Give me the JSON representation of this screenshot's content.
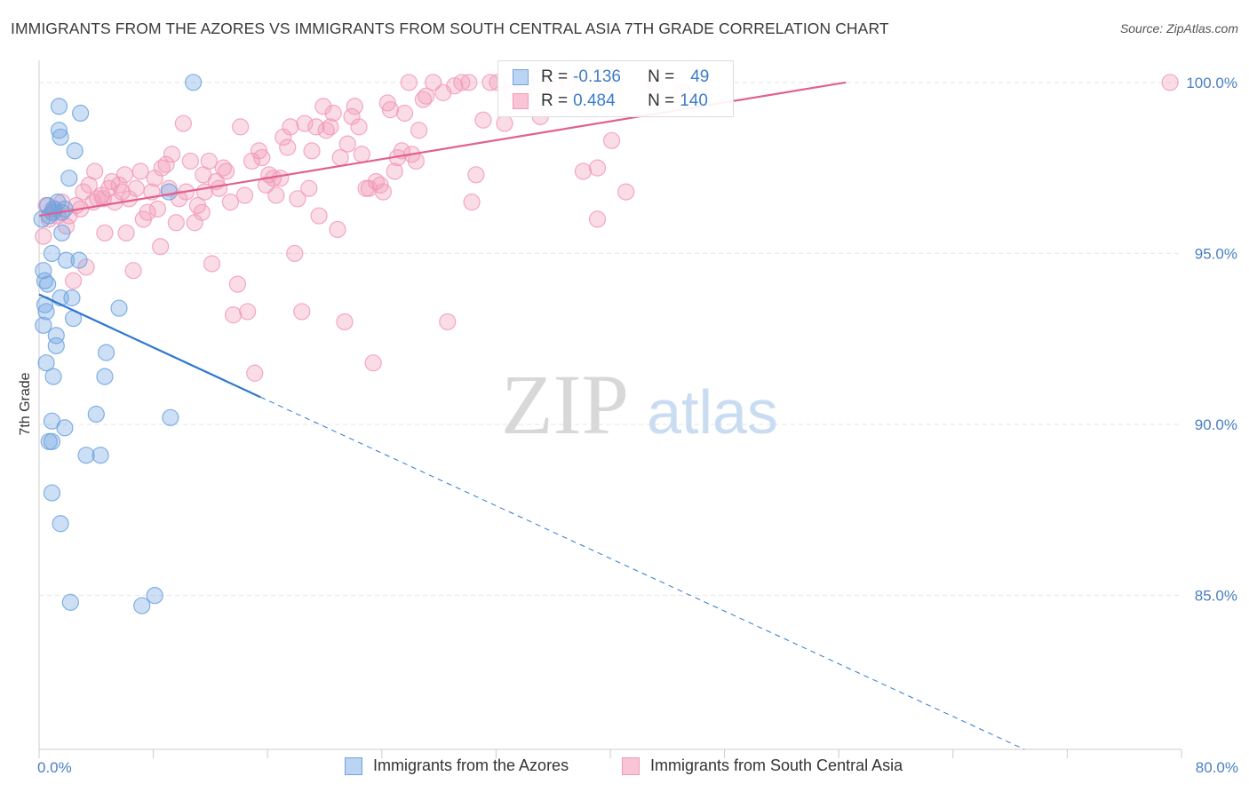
{
  "chart_data": {
    "type": "scatter",
    "title": "IMMIGRANTS FROM THE AZORES VS IMMIGRANTS FROM SOUTH CENTRAL ASIA 7TH GRADE CORRELATION CHART",
    "source": "Source: ZipAtlas.com",
    "watermark": {
      "zip": "ZIP",
      "atlas": "atlas"
    },
    "ylabel": "7th Grade",
    "xlim": [
      0,
      80
    ],
    "ylim": [
      80.5,
      100.8
    ],
    "x_tick_labels": {
      "left": "0.0%",
      "right": "80.0%"
    },
    "y_ticks": [
      {
        "value": 100,
        "label": "100.0%"
      },
      {
        "value": 95,
        "label": "95.0%"
      },
      {
        "value": 90,
        "label": "90.0%"
      },
      {
        "value": 85,
        "label": "85.0%"
      }
    ],
    "legend": {
      "rows": [
        {
          "r_label": "R =",
          "r_value": "-0.136",
          "n_label": "N =",
          "n_value": "49"
        },
        {
          "r_label": "R =",
          "r_value": "0.484",
          "n_label": "N =",
          "n_value": "140"
        }
      ]
    },
    "series": [
      {
        "name": "Immigrants from the Azores",
        "color": "#6fa3e0",
        "line_color": "#2f78cf",
        "trend": {
          "solid": [
            [
              0,
              93.8
            ],
            [
              15.5,
              90.8
            ]
          ],
          "dashed": [
            [
              15.5,
              90.8
            ],
            [
              69,
              80.5
            ]
          ]
        },
        "points": [
          [
            10.8,
            100.0
          ],
          [
            1.4,
            99.3
          ],
          [
            2.9,
            99.1
          ],
          [
            1.4,
            98.6
          ],
          [
            1.5,
            98.4
          ],
          [
            2.5,
            98.0
          ],
          [
            2.1,
            97.2
          ],
          [
            9.1,
            96.8
          ],
          [
            1.3,
            96.5
          ],
          [
            0.6,
            96.4
          ],
          [
            1.0,
            96.2
          ],
          [
            1.6,
            96.2
          ],
          [
            0.2,
            96.0
          ],
          [
            1.6,
            95.6
          ],
          [
            0.9,
            95.0
          ],
          [
            1.9,
            94.8
          ],
          [
            2.8,
            94.8
          ],
          [
            0.3,
            94.5
          ],
          [
            0.4,
            94.2
          ],
          [
            0.6,
            94.1
          ],
          [
            1.5,
            93.7
          ],
          [
            2.3,
            93.7
          ],
          [
            0.4,
            93.5
          ],
          [
            5.6,
            93.4
          ],
          [
            0.5,
            93.3
          ],
          [
            2.4,
            93.1
          ],
          [
            0.3,
            92.9
          ],
          [
            1.2,
            92.6
          ],
          [
            1.2,
            92.3
          ],
          [
            4.7,
            92.1
          ],
          [
            0.5,
            91.8
          ],
          [
            1.0,
            91.4
          ],
          [
            4.6,
            91.4
          ],
          [
            4.0,
            90.3
          ],
          [
            9.2,
            90.2
          ],
          [
            0.9,
            90.1
          ],
          [
            1.8,
            89.9
          ],
          [
            0.7,
            89.5
          ],
          [
            0.9,
            89.5
          ],
          [
            3.3,
            89.1
          ],
          [
            4.3,
            89.1
          ],
          [
            0.9,
            88.0
          ],
          [
            1.5,
            87.1
          ],
          [
            8.1,
            85.0
          ],
          [
            2.2,
            84.8
          ],
          [
            7.2,
            84.7
          ],
          [
            1.0,
            96.3
          ],
          [
            1.8,
            96.3
          ],
          [
            0.7,
            96.1
          ]
        ]
      },
      {
        "name": "Immigrants from South Central Asia",
        "color": "#f29ab8",
        "line_color": "#e0608e",
        "trend": {
          "solid": [
            [
              0,
              96.1
            ],
            [
              56.5,
              100.0
            ]
          ],
          "dashed": []
        },
        "points": [
          [
            0.3,
            95.5
          ],
          [
            0.5,
            96.4
          ],
          [
            0.7,
            96.0
          ],
          [
            0.9,
            96.2
          ],
          [
            1.1,
            96.3
          ],
          [
            1.3,
            96.1
          ],
          [
            1.6,
            96.5
          ],
          [
            1.9,
            95.8
          ],
          [
            2.1,
            96.1
          ],
          [
            2.4,
            94.2
          ],
          [
            2.6,
            96.4
          ],
          [
            2.9,
            96.3
          ],
          [
            3.1,
            96.8
          ],
          [
            3.3,
            94.6
          ],
          [
            3.5,
            97.0
          ],
          [
            3.8,
            96.5
          ],
          [
            3.9,
            97.4
          ],
          [
            4.1,
            96.6
          ],
          [
            4.4,
            96.7
          ],
          [
            4.6,
            95.6
          ],
          [
            4.9,
            96.9
          ],
          [
            5.1,
            97.1
          ],
          [
            5.3,
            96.5
          ],
          [
            5.6,
            97.0
          ],
          [
            5.8,
            96.8
          ],
          [
            6.1,
            95.6
          ],
          [
            6.3,
            96.6
          ],
          [
            6.6,
            94.5
          ],
          [
            6.8,
            96.9
          ],
          [
            7.1,
            97.4
          ],
          [
            7.3,
            96.0
          ],
          [
            7.6,
            96.2
          ],
          [
            7.9,
            96.8
          ],
          [
            8.1,
            97.2
          ],
          [
            8.3,
            96.3
          ],
          [
            8.6,
            97.5
          ],
          [
            8.9,
            97.6
          ],
          [
            9.1,
            96.9
          ],
          [
            9.3,
            97.9
          ],
          [
            9.6,
            95.9
          ],
          [
            9.8,
            96.6
          ],
          [
            10.1,
            98.8
          ],
          [
            10.3,
            96.8
          ],
          [
            10.6,
            97.7
          ],
          [
            10.9,
            95.9
          ],
          [
            11.1,
            96.4
          ],
          [
            11.4,
            96.2
          ],
          [
            11.6,
            96.8
          ],
          [
            11.9,
            97.7
          ],
          [
            12.1,
            94.7
          ],
          [
            12.4,
            97.1
          ],
          [
            12.6,
            96.9
          ],
          [
            12.9,
            97.5
          ],
          [
            13.1,
            97.4
          ],
          [
            13.4,
            96.5
          ],
          [
            13.6,
            93.2
          ],
          [
            13.9,
            94.1
          ],
          [
            14.1,
            98.7
          ],
          [
            14.4,
            96.7
          ],
          [
            14.6,
            93.3
          ],
          [
            14.9,
            97.7
          ],
          [
            15.1,
            91.5
          ],
          [
            15.4,
            98.0
          ],
          [
            15.6,
            97.8
          ],
          [
            15.9,
            97.0
          ],
          [
            16.1,
            97.3
          ],
          [
            16.4,
            97.2
          ],
          [
            16.6,
            96.7
          ],
          [
            16.9,
            97.2
          ],
          [
            17.1,
            98.4
          ],
          [
            17.4,
            98.1
          ],
          [
            17.6,
            98.7
          ],
          [
            17.9,
            95.0
          ],
          [
            18.1,
            96.6
          ],
          [
            18.4,
            93.3
          ],
          [
            18.6,
            98.8
          ],
          [
            18.9,
            96.9
          ],
          [
            19.1,
            98.0
          ],
          [
            19.4,
            98.7
          ],
          [
            19.6,
            96.1
          ],
          [
            19.9,
            99.3
          ],
          [
            20.1,
            98.6
          ],
          [
            20.4,
            98.7
          ],
          [
            20.6,
            99.1
          ],
          [
            20.9,
            95.7
          ],
          [
            21.1,
            97.8
          ],
          [
            21.4,
            93.0
          ],
          [
            21.6,
            98.2
          ],
          [
            21.9,
            99.0
          ],
          [
            22.1,
            99.3
          ],
          [
            22.4,
            98.7
          ],
          [
            22.6,
            97.9
          ],
          [
            22.9,
            96.9
          ],
          [
            23.1,
            96.9
          ],
          [
            23.4,
            91.8
          ],
          [
            23.6,
            97.1
          ],
          [
            23.9,
            97.0
          ],
          [
            24.1,
            96.8
          ],
          [
            24.4,
            99.4
          ],
          [
            24.6,
            99.2
          ],
          [
            24.9,
            97.4
          ],
          [
            25.1,
            97.8
          ],
          [
            25.4,
            98.0
          ],
          [
            25.6,
            99.1
          ],
          [
            25.9,
            100.0
          ],
          [
            26.1,
            97.9
          ],
          [
            26.4,
            97.7
          ],
          [
            26.6,
            98.6
          ],
          [
            26.9,
            99.5
          ],
          [
            27.1,
            99.6
          ],
          [
            27.6,
            100.0
          ],
          [
            28.3,
            99.7
          ],
          [
            28.6,
            93.0
          ],
          [
            29.1,
            99.9
          ],
          [
            29.6,
            100.0
          ],
          [
            30.1,
            100.0
          ],
          [
            30.3,
            96.5
          ],
          [
            30.6,
            97.3
          ],
          [
            31.1,
            98.9
          ],
          [
            31.6,
            100.0
          ],
          [
            32.1,
            100.0
          ],
          [
            32.6,
            98.8
          ],
          [
            33.1,
            99.7
          ],
          [
            34.1,
            100.0
          ],
          [
            35.1,
            99.0
          ],
          [
            36.1,
            100.0
          ],
          [
            37.1,
            100.0
          ],
          [
            38.1,
            97.4
          ],
          [
            39.1,
            97.5
          ],
          [
            39.6,
            100.0
          ],
          [
            40.1,
            98.3
          ],
          [
            41.1,
            96.8
          ],
          [
            43.1,
            100.0
          ],
          [
            45.1,
            99.7
          ],
          [
            39.1,
            96.0
          ],
          [
            79.2,
            100.0
          ],
          [
            4.5,
            96.6
          ],
          [
            6.0,
            97.3
          ],
          [
            8.5,
            95.2
          ],
          [
            11.5,
            97.3
          ]
        ]
      }
    ],
    "bottom_legend": [
      "Immigrants from the Azores",
      "Immigrants from South Central Asia"
    ]
  }
}
